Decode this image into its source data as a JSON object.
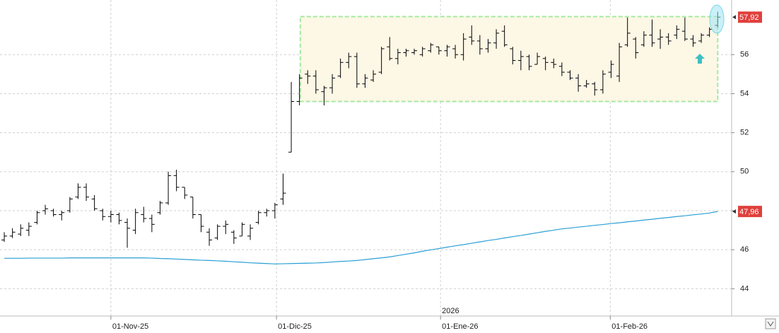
{
  "chart_data": {
    "type": "ohlc",
    "year_marker": "2026",
    "categories": [
      null,
      null,
      null,
      null,
      null,
      null,
      null,
      null,
      null,
      null,
      null,
      null,
      null,
      null,
      null,
      null,
      null,
      null,
      null,
      null,
      null,
      null,
      null,
      null,
      null,
      null,
      null,
      null,
      null,
      null,
      null,
      null,
      null,
      null,
      null,
      null,
      null,
      null,
      null,
      null,
      null,
      null,
      null,
      null,
      null,
      null,
      null,
      null,
      null,
      null,
      null,
      null,
      null,
      null,
      null,
      null,
      null,
      null,
      null,
      null,
      null,
      null,
      null,
      null,
      null,
      null,
      null,
      null,
      null,
      null,
      null,
      null,
      null,
      null,
      null,
      null,
      null,
      null,
      null,
      null,
      null,
      null,
      null,
      null,
      null,
      null,
      null,
      null
    ],
    "xlim": [
      -0.52,
      88.7
    ],
    "xticks": [
      {
        "value": 13.0,
        "label": "01-Nov-25"
      },
      {
        "value": 33.2,
        "label": "01-Dic-25"
      },
      {
        "value": 53.2,
        "label": "01-Ene-26"
      },
      {
        "value": 73.9,
        "label": "01-Feb-26"
      }
    ],
    "ylim": [
      42.6,
      58.8
    ],
    "yticks": [
      44,
      46,
      48,
      50,
      52,
      54,
      56
    ],
    "grid": true,
    "box": {
      "x": [
        36.1,
        87
      ],
      "y": [
        53.6,
        57.95
      ],
      "color": "#fdf7e6",
      "border": "#a6eaa0"
    },
    "series": [
      {
        "type": "ohlc",
        "color": "#000000",
        "open": [
          46.5,
          46.7,
          46.8,
          47.0,
          47.4,
          48.0,
          48.0,
          47.8,
          48.0,
          48.7,
          49.2,
          48.6,
          48.0,
          47.7,
          47.8,
          47.4,
          47.0,
          47.8,
          47.6,
          47.9,
          48.4,
          49.8,
          49.2,
          48.7,
          47.8,
          46.9,
          46.6,
          47.2,
          46.9,
          46.7,
          46.7,
          47.4,
          47.9,
          48.0,
          48.6,
          51.0,
          53.6,
          55.0,
          54.9,
          54.1,
          54.3,
          54.9,
          55.6,
          55.9,
          54.5,
          54.7,
          55.1,
          56.4,
          55.8,
          56.1,
          56.1,
          56.0,
          56.2,
          56.4,
          56.2,
          56.3,
          56.0,
          56.9,
          56.7,
          56.3,
          56.6,
          57.2,
          56.3,
          55.7,
          55.9,
          55.5,
          55.8,
          55.6,
          55.4,
          55.1,
          54.8,
          54.4,
          54.5,
          54.2,
          55.1,
          54.9,
          56.5,
          56.8,
          56.5,
          57.0,
          56.8,
          56.9,
          57.0,
          57.2,
          56.8,
          56.7,
          57.0,
          57.5
        ],
        "high": [
          46.9,
          47.1,
          47.3,
          47.4,
          48.0,
          48.3,
          48.1,
          48.0,
          48.7,
          49.4,
          49.4,
          48.8,
          48.1,
          48.0,
          47.9,
          47.6,
          48.1,
          48.2,
          47.8,
          48.5,
          50.0,
          50.1,
          49.2,
          48.7,
          47.8,
          47.1,
          47.3,
          47.5,
          47.0,
          47.4,
          47.3,
          48.0,
          48.1,
          48.4,
          49.9,
          54.6,
          55.0,
          55.2,
          55.2,
          54.4,
          55.0,
          55.8,
          56.1,
          56.1,
          55.0,
          55.2,
          56.4,
          56.9,
          56.3,
          56.3,
          56.3,
          56.4,
          56.6,
          56.4,
          56.5,
          56.5,
          57.1,
          57.5,
          57.0,
          56.8,
          57.3,
          57.5,
          56.4,
          56.2,
          56.0,
          56.1,
          55.9,
          55.8,
          55.6,
          55.2,
          55.0,
          54.7,
          54.6,
          55.2,
          55.7,
          56.6,
          57.9,
          56.9,
          57.2,
          57.8,
          57.3,
          57.1,
          57.5,
          57.9,
          57.0,
          57.1,
          57.4,
          58.2
        ],
        "low": [
          46.4,
          46.6,
          46.7,
          46.7,
          47.3,
          47.8,
          47.7,
          47.5,
          47.9,
          48.6,
          48.5,
          48.0,
          47.5,
          47.4,
          47.3,
          46.1,
          46.8,
          47.4,
          46.9,
          47.8,
          48.3,
          49.0,
          48.6,
          47.6,
          46.9,
          46.2,
          46.5,
          46.8,
          46.3,
          46.7,
          46.5,
          47.3,
          47.7,
          47.6,
          48.3,
          51.0,
          53.4,
          54.5,
          54.0,
          53.4,
          54.0,
          54.8,
          55.3,
          54.3,
          54.3,
          54.6,
          55.0,
          55.7,
          55.5,
          55.9,
          56.0,
          55.9,
          56.1,
          56.0,
          55.9,
          55.8,
          55.7,
          56.5,
          56.0,
          56.1,
          56.3,
          56.4,
          55.5,
          55.2,
          55.2,
          55.5,
          55.2,
          55.3,
          54.9,
          54.7,
          54.1,
          54.3,
          53.9,
          54.0,
          54.8,
          54.6,
          56.4,
          55.8,
          56.4,
          56.4,
          56.3,
          56.5,
          56.8,
          56.7,
          56.4,
          56.6,
          56.9,
          57.4
        ],
        "close": [
          46.7,
          46.9,
          47.1,
          47.2,
          47.9,
          48.1,
          47.8,
          47.9,
          48.6,
          49.2,
          48.7,
          48.1,
          47.7,
          47.8,
          47.5,
          47.1,
          47.9,
          47.6,
          47.3,
          48.4,
          49.8,
          49.2,
          48.8,
          47.8,
          47.2,
          46.5,
          47.2,
          47.3,
          46.6,
          47.3,
          47.1,
          47.9,
          48.0,
          48.3,
          48.9,
          53.6,
          54.8,
          54.9,
          54.2,
          54.3,
          54.8,
          55.6,
          55.9,
          54.5,
          54.8,
          55.0,
          56.3,
          55.8,
          56.1,
          56.2,
          56.2,
          56.3,
          56.5,
          56.2,
          56.4,
          56.0,
          56.8,
          56.7,
          56.3,
          56.6,
          57.1,
          56.5,
          55.7,
          55.9,
          55.4,
          55.9,
          55.6,
          55.5,
          55.1,
          54.8,
          54.4,
          54.5,
          54.2,
          55.0,
          55.5,
          56.4,
          57.1,
          56.1,
          57.0,
          56.6,
          56.9,
          56.7,
          57.3,
          56.8,
          56.6,
          57.0,
          57.3,
          57.92
        ],
        "last_label": "57,92",
        "label_color": "#e0403c"
      },
      {
        "type": "line",
        "color": "#2a9fd4",
        "values": [
          45.56,
          45.56,
          45.56,
          45.57,
          45.57,
          45.57,
          45.57,
          45.57,
          45.58,
          45.58,
          45.58,
          45.58,
          45.58,
          45.58,
          45.58,
          45.58,
          45.58,
          45.58,
          45.57,
          45.55,
          45.54,
          45.52,
          45.5,
          45.48,
          45.46,
          45.45,
          45.43,
          45.41,
          45.38,
          45.36,
          45.33,
          45.31,
          45.29,
          45.27,
          45.28,
          45.29,
          45.3,
          45.31,
          45.32,
          45.34,
          45.37,
          45.4,
          45.42,
          45.45,
          45.49,
          45.54,
          45.58,
          45.63,
          45.7,
          45.77,
          45.84,
          45.92,
          45.99,
          46.06,
          46.13,
          46.2,
          46.26,
          46.33,
          46.4,
          46.47,
          46.53,
          46.6,
          46.67,
          46.73,
          46.8,
          46.87,
          46.94,
          47.0,
          47.07,
          47.11,
          47.16,
          47.2,
          47.25,
          47.29,
          47.34,
          47.38,
          47.43,
          47.47,
          47.52,
          47.56,
          47.61,
          47.65,
          47.7,
          47.74,
          47.79,
          47.83,
          47.88,
          47.96
        ],
        "last_label": "47,96",
        "label_color": "#e0403c"
      }
    ]
  }
}
